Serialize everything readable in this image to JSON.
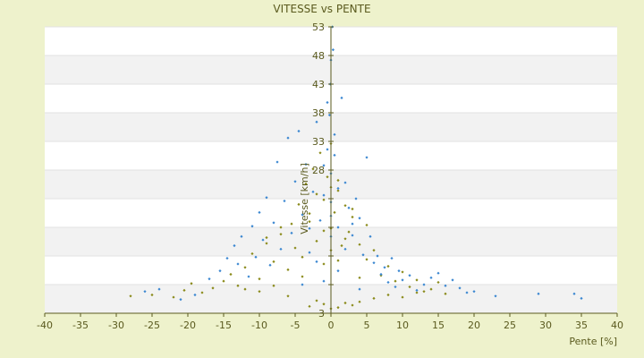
{
  "chart_data": {
    "type": "scatter",
    "title": "VITESSE vs PENTE",
    "xlabel": "Pente [%]",
    "ylabel": "Vitesse [km/h]",
    "xlim": [
      -40,
      40
    ],
    "ylim": [
      3,
      53
    ],
    "xticks": [
      -40,
      -35,
      -30,
      -25,
      -20,
      -15,
      -10,
      -5,
      0,
      5,
      10,
      15,
      20,
      25,
      30,
      35,
      40
    ],
    "yticks": [
      3,
      8,
      13,
      18,
      23,
      28,
      33,
      38,
      43,
      48,
      53
    ],
    "ytick_labels": [
      "3",
      "",
      "",
      "",
      "",
      "28",
      "33",
      "38",
      "43",
      "48",
      "53"
    ],
    "grid": "horizontal bands",
    "legend": "none",
    "series": [
      {
        "color": "#8a8a1a",
        "marker": "diamond",
        "points": [
          [
            -28,
            6.0
          ],
          [
            -25,
            6.2
          ],
          [
            -22,
            5.8
          ],
          [
            -20.5,
            7.0
          ],
          [
            -19.5,
            8.2
          ],
          [
            -18,
            6.6
          ],
          [
            -16.5,
            7.4
          ],
          [
            -15,
            8.6
          ],
          [
            -14,
            9.8
          ],
          [
            -13,
            7.8
          ],
          [
            -12,
            11.0
          ],
          [
            -11,
            13.4
          ],
          [
            -10,
            9.0
          ],
          [
            -9,
            15.2
          ],
          [
            -8,
            12.0
          ],
          [
            -7,
            16.8
          ],
          [
            -6,
            10.6
          ],
          [
            -5.5,
            18.6
          ],
          [
            -5,
            14.4
          ],
          [
            -4.5,
            22.0
          ],
          [
            -4,
            12.8
          ],
          [
            -3.5,
            25.6
          ],
          [
            -3,
            19.0
          ],
          [
            -2.5,
            28.2
          ],
          [
            -2,
            23.8
          ],
          [
            -1.5,
            31.0
          ],
          [
            -1,
            17.4
          ],
          [
            -0.5,
            26.8
          ],
          [
            0,
            32.6
          ],
          [
            0.5,
            20.6
          ],
          [
            1,
            24.4
          ],
          [
            1.5,
            14.8
          ],
          [
            2,
            21.8
          ],
          [
            2.5,
            17.2
          ],
          [
            3,
            19.8
          ],
          [
            4,
            15.0
          ],
          [
            5,
            12.4
          ],
          [
            6,
            14.0
          ],
          [
            7,
            9.6
          ],
          [
            8,
            11.2
          ],
          [
            9,
            8.6
          ],
          [
            10,
            10.2
          ],
          [
            11,
            7.6
          ],
          [
            12,
            8.8
          ],
          [
            13,
            6.8
          ],
          [
            14,
            7.2
          ],
          [
            15,
            8.4
          ],
          [
            16,
            6.4
          ],
          [
            -3,
            4.2
          ],
          [
            -1,
            4.6
          ],
          [
            0,
            3.8
          ],
          [
            1,
            4.0
          ],
          [
            2,
            4.8
          ],
          [
            3,
            4.4
          ],
          [
            -2,
            5.2
          ],
          [
            4,
            5.0
          ],
          [
            -6,
            6.0
          ],
          [
            6,
            5.6
          ],
          [
            -8,
            7.8
          ],
          [
            8,
            6.2
          ],
          [
            -10,
            6.8
          ],
          [
            10,
            5.8
          ],
          [
            -12,
            7.2
          ],
          [
            12,
            6.6
          ],
          [
            -4,
            9.4
          ],
          [
            4,
            9.2
          ],
          [
            -1,
            11.6
          ],
          [
            1,
            12.2
          ],
          [
            0,
            14.0
          ],
          [
            -2,
            15.6
          ],
          [
            2,
            16.0
          ],
          [
            0,
            17.8
          ],
          [
            -3,
            20.4
          ],
          [
            3,
            21.2
          ],
          [
            -1,
            22.8
          ],
          [
            1,
            26.2
          ],
          [
            0,
            25.0
          ],
          [
            -7,
            18.0
          ],
          [
            5,
            18.4
          ],
          [
            -9,
            16.2
          ]
        ]
      },
      {
        "color": "#3b87d1",
        "marker": "diamond",
        "points": [
          [
            -26,
            6.8
          ],
          [
            -24,
            7.2
          ],
          [
            -21,
            5.4
          ],
          [
            -19,
            6.2
          ],
          [
            -17,
            9.0
          ],
          [
            -15.5,
            10.4
          ],
          [
            -14.5,
            12.6
          ],
          [
            -13.5,
            14.8
          ],
          [
            -13,
            11.6
          ],
          [
            -12.5,
            16.4
          ],
          [
            -11.5,
            9.4
          ],
          [
            -11,
            18.2
          ],
          [
            -10.5,
            12.8
          ],
          [
            -10,
            20.6
          ],
          [
            -9.5,
            15.8
          ],
          [
            -9,
            23.2
          ],
          [
            -8.5,
            11.4
          ],
          [
            -8,
            18.8
          ],
          [
            -7.5,
            29.4
          ],
          [
            -7,
            14.2
          ],
          [
            -6.5,
            22.6
          ],
          [
            -6,
            33.6
          ],
          [
            -5.5,
            17.0
          ],
          [
            -5,
            26.0
          ],
          [
            -4.5,
            34.8
          ],
          [
            -4,
            20.2
          ],
          [
            -3.5,
            29.0
          ],
          [
            -3,
            13.6
          ],
          [
            -2.5,
            24.2
          ],
          [
            -2,
            36.4
          ],
          [
            -1.5,
            19.2
          ],
          [
            -1,
            28.8
          ],
          [
            -0.5,
            39.8
          ],
          [
            0,
            22.4
          ],
          [
            0,
            47.2
          ],
          [
            0.2,
            53.0
          ],
          [
            0.5,
            30.6
          ],
          [
            1,
            18.0
          ],
          [
            1.5,
            40.6
          ],
          [
            2,
            25.8
          ],
          [
            2.5,
            21.4
          ],
          [
            3,
            16.6
          ],
          [
            3.5,
            23.0
          ],
          [
            4,
            19.6
          ],
          [
            4.5,
            13.2
          ],
          [
            5,
            30.2
          ],
          [
            5.5,
            16.4
          ],
          [
            6,
            11.8
          ],
          [
            6.5,
            13.0
          ],
          [
            7,
            9.8
          ],
          [
            7.5,
            11.0
          ],
          [
            8,
            8.4
          ],
          [
            8.5,
            12.6
          ],
          [
            9,
            7.6
          ],
          [
            9.5,
            10.4
          ],
          [
            10,
            8.8
          ],
          [
            11,
            9.6
          ],
          [
            12,
            7.0
          ],
          [
            13,
            8.0
          ],
          [
            14,
            9.2
          ],
          [
            15,
            10.0
          ],
          [
            16,
            7.8
          ],
          [
            17,
            8.8
          ],
          [
            18,
            7.4
          ],
          [
            19,
            6.6
          ],
          [
            20,
            6.8
          ],
          [
            23,
            6.0
          ],
          [
            29,
            6.4
          ],
          [
            34,
            6.4
          ],
          [
            35,
            5.6
          ],
          [
            -1,
            8.6
          ],
          [
            1,
            10.4
          ],
          [
            -2,
            12.0
          ],
          [
            2,
            14.2
          ],
          [
            0,
            16.4
          ],
          [
            -3,
            17.8
          ],
          [
            3,
            18.6
          ],
          [
            0,
            20.0
          ],
          [
            -1,
            23.6
          ],
          [
            1,
            24.8
          ],
          [
            0,
            27.4
          ],
          [
            -0.5,
            31.6
          ],
          [
            0.5,
            34.2
          ],
          [
            -0.2,
            37.6
          ],
          [
            -0.1,
            43.0
          ],
          [
            0.3,
            49.0
          ],
          [
            -4,
            8.0
          ],
          [
            4,
            7.2
          ]
        ]
      }
    ]
  }
}
